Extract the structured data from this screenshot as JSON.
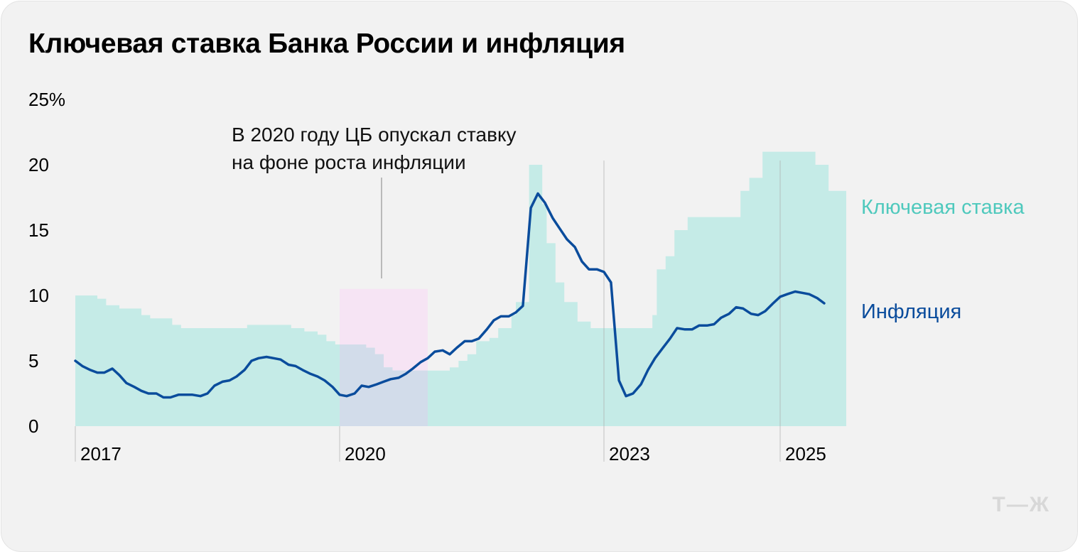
{
  "title": "Ключевая ставка Банка России и инфляция",
  "logo": "Т—Ж",
  "colors": {
    "background": "#f2f2f2",
    "rate_fill": "#c5ebe7",
    "rate_label": "#4fc9bd",
    "inflation_line": "#0a4c9c",
    "highlight": "#f6e4f4",
    "highlight_overlap": "#d2dcea",
    "guide": "#a8a8a8",
    "logo": "#d8d8d8"
  },
  "annotation": {
    "lines": [
      "В 2020 году ЦБ опускал ставку",
      "на фоне роста инфляции"
    ]
  },
  "chart_data": {
    "type": "area",
    "title": "Ключевая ставка Банка России и инфляция",
    "ylim": [
      0,
      25
    ],
    "y_ticks": [
      {
        "value": 25,
        "label": "25%"
      },
      {
        "value": 20,
        "label": "20"
      },
      {
        "value": 15,
        "label": "15"
      },
      {
        "value": 10,
        "label": "10"
      },
      {
        "value": 5,
        "label": "5"
      },
      {
        "value": 0,
        "label": "0"
      }
    ],
    "x_range": [
      2017.0,
      2025.75
    ],
    "x_ticks": [
      {
        "value": 2017,
        "label": "2017"
      },
      {
        "value": 2020,
        "label": "2020"
      },
      {
        "value": 2023,
        "label": "2023"
      },
      {
        "value": 2025,
        "label": "2025"
      }
    ],
    "highlight_period": {
      "start": 2020.0,
      "end": 2021.0,
      "top": 10.5
    },
    "series": [
      {
        "name": "Ключевая ставка",
        "kind": "step-area",
        "points": [
          [
            2017.0,
            10.0
          ],
          [
            2017.25,
            9.75
          ],
          [
            2017.35,
            9.25
          ],
          [
            2017.5,
            9.0
          ],
          [
            2017.75,
            8.5
          ],
          [
            2017.85,
            8.25
          ],
          [
            2018.1,
            7.75
          ],
          [
            2018.2,
            7.5
          ],
          [
            2018.7,
            7.5
          ],
          [
            2018.95,
            7.75
          ],
          [
            2019.4,
            7.75
          ],
          [
            2019.45,
            7.5
          ],
          [
            2019.6,
            7.25
          ],
          [
            2019.75,
            7.0
          ],
          [
            2019.85,
            6.5
          ],
          [
            2019.95,
            6.25
          ],
          [
            2020.3,
            6.0
          ],
          [
            2020.4,
            5.5
          ],
          [
            2020.5,
            4.5
          ],
          [
            2020.6,
            4.25
          ],
          [
            2021.15,
            4.25
          ],
          [
            2021.25,
            4.5
          ],
          [
            2021.35,
            5.0
          ],
          [
            2021.45,
            5.5
          ],
          [
            2021.55,
            6.5
          ],
          [
            2021.7,
            6.75
          ],
          [
            2021.8,
            7.5
          ],
          [
            2021.95,
            8.5
          ],
          [
            2022.0,
            9.5
          ],
          [
            2022.15,
            20.0
          ],
          [
            2022.3,
            17.0
          ],
          [
            2022.35,
            14.0
          ],
          [
            2022.45,
            11.0
          ],
          [
            2022.55,
            9.5
          ],
          [
            2022.7,
            8.0
          ],
          [
            2022.85,
            7.5
          ],
          [
            2023.55,
            8.5
          ],
          [
            2023.6,
            12.0
          ],
          [
            2023.7,
            13.0
          ],
          [
            2023.8,
            15.0
          ],
          [
            2023.95,
            16.0
          ],
          [
            2024.55,
            18.0
          ],
          [
            2024.65,
            19.0
          ],
          [
            2024.8,
            21.0
          ],
          [
            2025.4,
            20.0
          ],
          [
            2025.55,
            18.0
          ],
          [
            2025.75,
            18.0
          ]
        ]
      },
      {
        "name": "Инфляция",
        "kind": "line",
        "points": [
          [
            2017.0,
            5.0
          ],
          [
            2017.08,
            4.6
          ],
          [
            2017.17,
            4.3
          ],
          [
            2017.25,
            4.1
          ],
          [
            2017.33,
            4.1
          ],
          [
            2017.42,
            4.4
          ],
          [
            2017.5,
            3.9
          ],
          [
            2017.58,
            3.3
          ],
          [
            2017.67,
            3.0
          ],
          [
            2017.75,
            2.7
          ],
          [
            2017.83,
            2.5
          ],
          [
            2017.92,
            2.5
          ],
          [
            2018.0,
            2.2
          ],
          [
            2018.08,
            2.2
          ],
          [
            2018.17,
            2.4
          ],
          [
            2018.25,
            2.4
          ],
          [
            2018.33,
            2.4
          ],
          [
            2018.42,
            2.3
          ],
          [
            2018.5,
            2.5
          ],
          [
            2018.58,
            3.1
          ],
          [
            2018.67,
            3.4
          ],
          [
            2018.75,
            3.5
          ],
          [
            2018.83,
            3.8
          ],
          [
            2018.92,
            4.3
          ],
          [
            2019.0,
            5.0
          ],
          [
            2019.08,
            5.2
          ],
          [
            2019.17,
            5.3
          ],
          [
            2019.25,
            5.2
          ],
          [
            2019.33,
            5.1
          ],
          [
            2019.42,
            4.7
          ],
          [
            2019.5,
            4.6
          ],
          [
            2019.58,
            4.3
          ],
          [
            2019.67,
            4.0
          ],
          [
            2019.75,
            3.8
          ],
          [
            2019.83,
            3.5
          ],
          [
            2019.92,
            3.0
          ],
          [
            2020.0,
            2.4
          ],
          [
            2020.08,
            2.3
          ],
          [
            2020.17,
            2.5
          ],
          [
            2020.25,
            3.1
          ],
          [
            2020.33,
            3.0
          ],
          [
            2020.42,
            3.2
          ],
          [
            2020.5,
            3.4
          ],
          [
            2020.58,
            3.6
          ],
          [
            2020.67,
            3.7
          ],
          [
            2020.75,
            4.0
          ],
          [
            2020.83,
            4.4
          ],
          [
            2020.92,
            4.9
          ],
          [
            2021.0,
            5.2
          ],
          [
            2021.08,
            5.7
          ],
          [
            2021.17,
            5.8
          ],
          [
            2021.25,
            5.5
          ],
          [
            2021.33,
            6.0
          ],
          [
            2021.42,
            6.5
          ],
          [
            2021.5,
            6.5
          ],
          [
            2021.58,
            6.7
          ],
          [
            2021.67,
            7.4
          ],
          [
            2021.75,
            8.1
          ],
          [
            2021.83,
            8.4
          ],
          [
            2021.92,
            8.4
          ],
          [
            2022.0,
            8.7
          ],
          [
            2022.08,
            9.2
          ],
          [
            2022.17,
            16.7
          ],
          [
            2022.25,
            17.8
          ],
          [
            2022.33,
            17.1
          ],
          [
            2022.42,
            15.9
          ],
          [
            2022.5,
            15.1
          ],
          [
            2022.58,
            14.3
          ],
          [
            2022.67,
            13.7
          ],
          [
            2022.75,
            12.6
          ],
          [
            2022.83,
            12.0
          ],
          [
            2022.92,
            12.0
          ],
          [
            2023.0,
            11.8
          ],
          [
            2023.08,
            11.0
          ],
          [
            2023.17,
            3.5
          ],
          [
            2023.25,
            2.3
          ],
          [
            2023.33,
            2.5
          ],
          [
            2023.42,
            3.2
          ],
          [
            2023.5,
            4.3
          ],
          [
            2023.58,
            5.2
          ],
          [
            2023.67,
            6.0
          ],
          [
            2023.75,
            6.7
          ],
          [
            2023.83,
            7.5
          ],
          [
            2023.92,
            7.4
          ],
          [
            2024.0,
            7.4
          ],
          [
            2024.08,
            7.7
          ],
          [
            2024.17,
            7.7
          ],
          [
            2024.25,
            7.8
          ],
          [
            2024.33,
            8.3
          ],
          [
            2024.42,
            8.6
          ],
          [
            2024.5,
            9.1
          ],
          [
            2024.58,
            9.0
          ],
          [
            2024.67,
            8.6
          ],
          [
            2024.75,
            8.5
          ],
          [
            2024.83,
            8.8
          ],
          [
            2024.92,
            9.4
          ],
          [
            2025.0,
            9.9
          ],
          [
            2025.08,
            10.1
          ],
          [
            2025.17,
            10.3
          ],
          [
            2025.25,
            10.2
          ],
          [
            2025.33,
            10.1
          ],
          [
            2025.42,
            9.8
          ],
          [
            2025.5,
            9.4
          ]
        ]
      }
    ],
    "series_labels": {
      "rate": "Ключевая ставка",
      "inflation": "Инфляция"
    },
    "grid": false,
    "legend": "inline-right"
  }
}
